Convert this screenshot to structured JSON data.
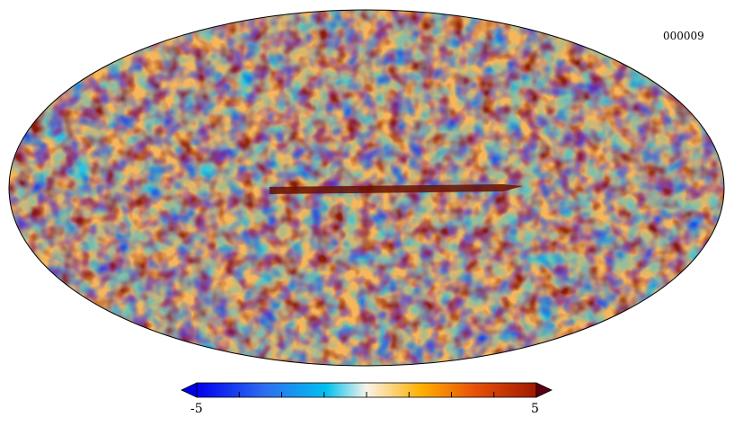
{
  "map": {
    "id_label": "000009",
    "projection": "mollweide",
    "colormap": [
      "#0000f0",
      "#2d6ef0",
      "#00c0f0",
      "#f8f3e8",
      "#ffb000",
      "#e8500a",
      "#a01a00",
      "#5c0010"
    ]
  },
  "colorbar": {
    "min_label": "-5",
    "max_label": "5",
    "range": [
      -5,
      5
    ],
    "ticks": [
      -5,
      -3.75,
      -2.5,
      -1.25,
      0,
      1.25,
      2.5,
      3.75,
      5
    ]
  }
}
